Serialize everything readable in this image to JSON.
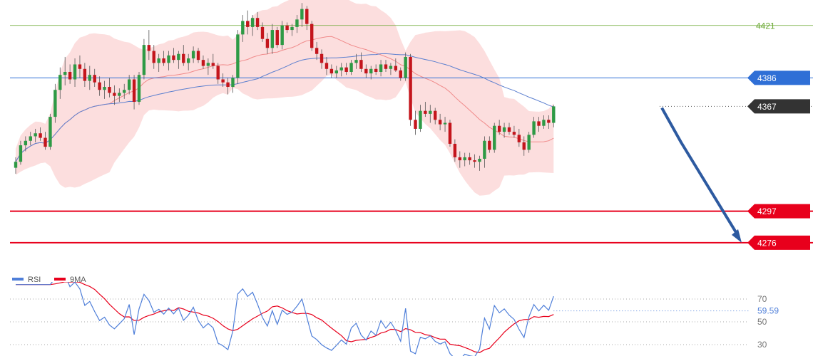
{
  "chart_data": {
    "type": "candlestick",
    "price_axis": {
      "ylim": [
        4255,
        4438
      ]
    },
    "levels": [
      {
        "label": "4421",
        "value": 4421,
        "color": "#6aa832",
        "style": "thin",
        "tag": "text"
      },
      {
        "label": "4386",
        "value": 4386,
        "color": "#2f6fd6",
        "style": "line",
        "tag": "box"
      },
      {
        "label": "4367",
        "value": 4367,
        "color": "#333333",
        "style": "dotted",
        "tag": "box"
      },
      {
        "label": "4297",
        "value": 4297,
        "color": "#e8001c",
        "style": "thick",
        "tag": "box"
      },
      {
        "label": "4276",
        "value": 4276,
        "color": "#e8001c",
        "style": "thick",
        "tag": "box"
      }
    ],
    "forecast_arrow": {
      "from": 4366,
      "via": 4343,
      "to": 4276,
      "color": "#2d5aa0"
    },
    "candles": [
      [
        4326,
        4333,
        4322,
        4330
      ],
      [
        4330,
        4344,
        4328,
        4341
      ],
      [
        4341,
        4347,
        4337,
        4344
      ],
      [
        4344,
        4350,
        4341,
        4347
      ],
      [
        4347,
        4352,
        4343,
        4349
      ],
      [
        4349,
        4353,
        4344,
        4346
      ],
      [
        4346,
        4350,
        4338,
        4340
      ],
      [
        4340,
        4362,
        4338,
        4360
      ],
      [
        4360,
        4382,
        4356,
        4378
      ],
      [
        4378,
        4393,
        4372,
        4388
      ],
      [
        4388,
        4400,
        4381,
        4390
      ],
      [
        4390,
        4395,
        4382,
        4385
      ],
      [
        4385,
        4399,
        4380,
        4395
      ],
      [
        4395,
        4401,
        4386,
        4392
      ],
      [
        4392,
        4396,
        4380,
        4384
      ],
      [
        4384,
        4394,
        4378,
        4388
      ],
      [
        4388,
        4392,
        4380,
        4383
      ],
      [
        4383,
        4387,
        4374,
        4378
      ],
      [
        4378,
        4384,
        4372,
        4380
      ],
      [
        4380,
        4386,
        4373,
        4376
      ],
      [
        4376,
        4381,
        4368,
        4374
      ],
      [
        4374,
        4379,
        4370,
        4376
      ],
      [
        4376,
        4382,
        4372,
        4378
      ],
      [
        4378,
        4388,
        4375,
        4385
      ],
      [
        4385,
        4388,
        4365,
        4370
      ],
      [
        4370,
        4390,
        4368,
        4388
      ],
      [
        4388,
        4412,
        4385,
        4408
      ],
      [
        4408,
        4418,
        4398,
        4404
      ],
      [
        4404,
        4408,
        4392,
        4396
      ],
      [
        4396,
        4402,
        4390,
        4399
      ],
      [
        4399,
        4404,
        4394,
        4396
      ],
      [
        4396,
        4404,
        4391,
        4401
      ],
      [
        4401,
        4406,
        4396,
        4398
      ],
      [
        4398,
        4404,
        4392,
        4402
      ],
      [
        4402,
        4408,
        4394,
        4396
      ],
      [
        4396,
        4402,
        4391,
        4399
      ],
      [
        4399,
        4407,
        4396,
        4404
      ],
      [
        4404,
        4406,
        4396,
        4398
      ],
      [
        4398,
        4401,
        4392,
        4394
      ],
      [
        4394,
        4399,
        4388,
        4396
      ],
      [
        4396,
        4402,
        4392,
        4394
      ],
      [
        4394,
        4396,
        4382,
        4385
      ],
      [
        4385,
        4389,
        4380,
        4383
      ],
      [
        4383,
        4386,
        4375,
        4380
      ],
      [
        4380,
        4388,
        4376,
        4386
      ],
      [
        4386,
        4418,
        4382,
        4415
      ],
      [
        4415,
        4428,
        4410,
        4424
      ],
      [
        4424,
        4431,
        4415,
        4420
      ],
      [
        4420,
        4428,
        4414,
        4426
      ],
      [
        4426,
        4430,
        4418,
        4420
      ],
      [
        4420,
        4423,
        4410,
        4412
      ],
      [
        4412,
        4416,
        4402,
        4406
      ],
      [
        4406,
        4422,
        4402,
        4418
      ],
      [
        4418,
        4420,
        4406,
        4408
      ],
      [
        4408,
        4424,
        4405,
        4421
      ],
      [
        4421,
        4423,
        4416,
        4418
      ],
      [
        4418,
        4422,
        4414,
        4420
      ],
      [
        4420,
        4428,
        4416,
        4425
      ],
      [
        4425,
        4436,
        4420,
        4432
      ],
      [
        4432,
        4434,
        4418,
        4422
      ],
      [
        4422,
        4424,
        4404,
        4406
      ],
      [
        4406,
        4410,
        4398,
        4402
      ],
      [
        4402,
        4405,
        4392,
        4396
      ],
      [
        4396,
        4400,
        4388,
        4392
      ],
      [
        4392,
        4395,
        4386,
        4389
      ],
      [
        4389,
        4394,
        4386,
        4391
      ],
      [
        4391,
        4396,
        4387,
        4393
      ],
      [
        4393,
        4396,
        4388,
        4390
      ],
      [
        4390,
        4398,
        4388,
        4396
      ],
      [
        4396,
        4402,
        4392,
        4398
      ],
      [
        4398,
        4403,
        4390,
        4392
      ],
      [
        4392,
        4395,
        4386,
        4389
      ],
      [
        4389,
        4394,
        4385,
        4392
      ],
      [
        4392,
        4395,
        4388,
        4390
      ],
      [
        4390,
        4398,
        4387,
        4395
      ],
      [
        4395,
        4398,
        4390,
        4392
      ],
      [
        4392,
        4396,
        4388,
        4394
      ],
      [
        4394,
        4399,
        4390,
        4391
      ],
      [
        4391,
        4393,
        4384,
        4386
      ],
      [
        4386,
        4403,
        4384,
        4400
      ],
      [
        4400,
        4402,
        4354,
        4358
      ],
      [
        4358,
        4364,
        4348,
        4352
      ],
      [
        4352,
        4368,
        4350,
        4364
      ],
      [
        4364,
        4370,
        4360,
        4362
      ],
      [
        4362,
        4368,
        4356,
        4364
      ],
      [
        4364,
        4366,
        4355,
        4358
      ],
      [
        4358,
        4362,
        4351,
        4355
      ],
      [
        4355,
        4360,
        4350,
        4356
      ],
      [
        4356,
        4358,
        4340,
        4342
      ],
      [
        4342,
        4345,
        4330,
        4333
      ],
      [
        4333,
        4337,
        4326,
        4331
      ],
      [
        4331,
        4336,
        4327,
        4333
      ],
      [
        4333,
        4336,
        4328,
        4331
      ],
      [
        4331,
        4335,
        4326,
        4330
      ],
      [
        4330,
        4334,
        4324,
        4332
      ],
      [
        4332,
        4347,
        4326,
        4344
      ],
      [
        4344,
        4347,
        4336,
        4338
      ],
      [
        4338,
        4356,
        4336,
        4354
      ],
      [
        4354,
        4358,
        4348,
        4350
      ],
      [
        4350,
        4356,
        4346,
        4353
      ],
      [
        4353,
        4356,
        4348,
        4350
      ],
      [
        4350,
        4354,
        4346,
        4348
      ],
      [
        4348,
        4352,
        4340,
        4343
      ],
      [
        4343,
        4347,
        4334,
        4338
      ],
      [
        4338,
        4350,
        4336,
        4348
      ],
      [
        4348,
        4360,
        4346,
        4357
      ],
      [
        4357,
        4360,
        4350,
        4354
      ],
      [
        4354,
        4361,
        4352,
        4358
      ],
      [
        4358,
        4361,
        4352,
        4356
      ],
      [
        4356,
        4368,
        4353,
        4367
      ]
    ],
    "rsi_axis": {
      "ylim": [
        20,
        85
      ],
      "ticks": [
        70,
        50,
        30
      ]
    },
    "legend": [
      {
        "name": "RSI",
        "color": "#4f7fd9"
      },
      {
        "name": "9MA",
        "color": "#e8001c"
      }
    ],
    "rsi_current_label": "59.59",
    "rsi_current": 59.59
  }
}
